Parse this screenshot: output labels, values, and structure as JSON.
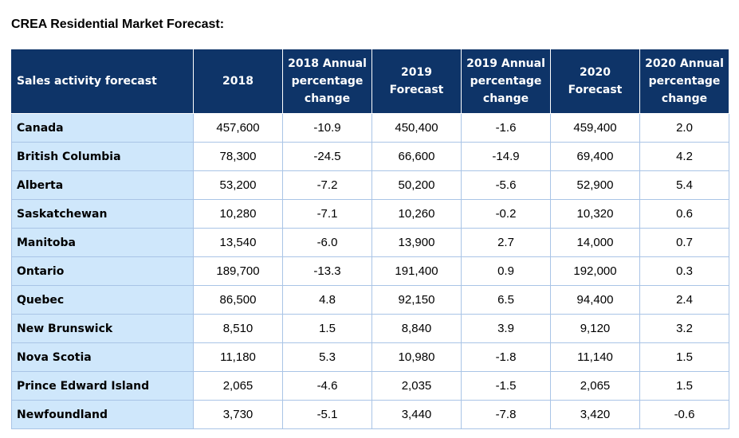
{
  "title": "CREA Residential Market Forecast:",
  "table": {
    "headers": [
      "Sales activity forecast",
      "2018",
      "2018 Annual percentage change",
      "2019 Forecast",
      "2019 Annual percentage change",
      "2020 Forecast",
      "2020 Annual percentage change"
    ],
    "rows": [
      [
        "Canada",
        "457,600",
        "-10.9",
        "450,400",
        "-1.6",
        "459,400",
        "2.0"
      ],
      [
        "British Columbia",
        "78,300",
        "-24.5",
        "66,600",
        "-14.9",
        "69,400",
        "4.2"
      ],
      [
        "Alberta",
        "53,200",
        "-7.2",
        "50,200",
        "-5.6",
        "52,900",
        "5.4"
      ],
      [
        "Saskatchewan",
        "10,280",
        "-7.1",
        "10,260",
        "-0.2",
        "10,320",
        "0.6"
      ],
      [
        "Manitoba",
        "13,540",
        "-6.0",
        "13,900",
        "2.7",
        "14,000",
        "0.7"
      ],
      [
        "Ontario",
        "189,700",
        "-13.3",
        "191,400",
        "0.9",
        "192,000",
        "0.3"
      ],
      [
        "Quebec",
        "86,500",
        "4.8",
        "92,150",
        "6.5",
        "94,400",
        "2.4"
      ],
      [
        "New Brunswick",
        "8,510",
        "1.5",
        "8,840",
        "3.9",
        "9,120",
        "3.2"
      ],
      [
        "Nova Scotia",
        "11,180",
        "5.3",
        "10,980",
        "-1.8",
        "11,140",
        "1.5"
      ],
      [
        "Prince Edward Island",
        "2,065",
        "-4.6",
        "2,035",
        "-1.5",
        "2,065",
        "1.5"
      ],
      [
        "Newfoundland",
        "3,730",
        "-5.1",
        "3,440",
        "-7.8",
        "3,420",
        "-0.6"
      ]
    ]
  },
  "colors": {
    "header_background": "#0e3468",
    "header_text": "#ffffff",
    "region_background": "#cfe7fb",
    "cell_border": "#a9c4e6"
  }
}
